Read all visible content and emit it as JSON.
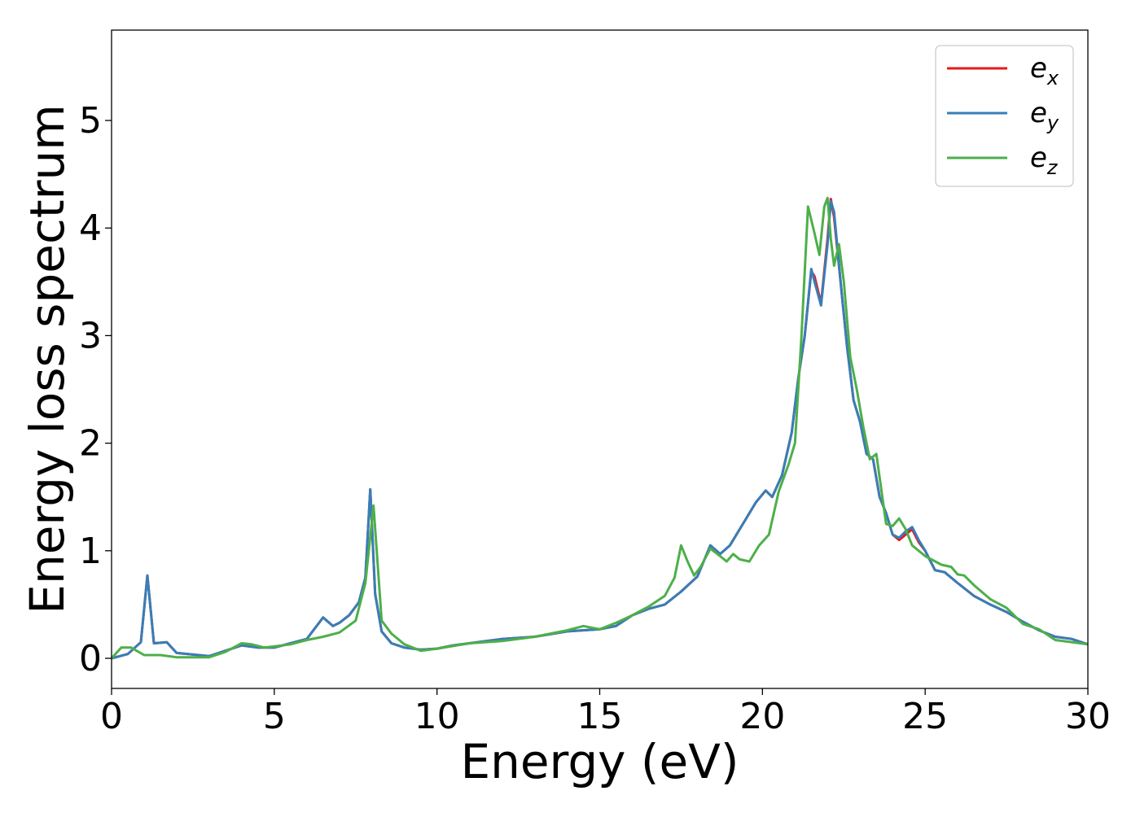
{
  "chart_data": {
    "type": "line",
    "xlabel": "Energy (eV)",
    "ylabel": "Energy loss spectrum",
    "xlim": [
      0,
      30
    ],
    "ylim": [
      -0.28,
      5.84
    ],
    "xticks": [
      "0",
      "5",
      "10",
      "15",
      "20",
      "25",
      "30"
    ],
    "yticks": [
      "0",
      "1",
      "2",
      "3",
      "4",
      "5"
    ],
    "grid": false,
    "legend_position": "top-right",
    "series": [
      {
        "name": "e_x",
        "legend_base": "e",
        "legend_sub": "x",
        "color": "#e41a1c",
        "x": [
          0,
          0.5,
          0.9,
          1.1,
          1.3,
          1.7,
          2.0,
          3.0,
          3.5,
          4.0,
          4.5,
          5.0,
          5.5,
          6.0,
          6.5,
          6.8,
          7.0,
          7.3,
          7.6,
          7.8,
          7.95,
          8.1,
          8.3,
          8.6,
          9.0,
          9.5,
          10.0,
          10.5,
          11.0,
          12.0,
          13.0,
          14.0,
          15.0,
          15.5,
          16.0,
          16.5,
          17.0,
          17.5,
          18.0,
          18.4,
          18.7,
          19.0,
          19.5,
          19.8,
          20.1,
          20.3,
          20.6,
          20.9,
          21.1,
          21.3,
          21.5,
          21.6,
          21.8,
          22.0,
          22.1,
          22.2,
          22.4,
          22.6,
          22.8,
          23.0,
          23.2,
          23.4,
          23.6,
          23.8,
          24.0,
          24.2,
          24.4,
          24.6,
          24.8,
          25.0,
          25.3,
          25.6,
          26.0,
          26.5,
          27.0,
          27.5,
          28.0,
          28.5,
          29.0,
          29.5,
          30.0
        ],
        "y": [
          0.0,
          0.04,
          0.15,
          0.77,
          0.14,
          0.15,
          0.05,
          0.02,
          0.07,
          0.12,
          0.1,
          0.1,
          0.14,
          0.18,
          0.38,
          0.3,
          0.33,
          0.4,
          0.52,
          0.75,
          1.57,
          0.6,
          0.25,
          0.14,
          0.1,
          0.08,
          0.09,
          0.12,
          0.14,
          0.18,
          0.2,
          0.25,
          0.27,
          0.3,
          0.4,
          0.46,
          0.5,
          0.62,
          0.76,
          1.05,
          0.97,
          1.05,
          1.3,
          1.45,
          1.56,
          1.5,
          1.7,
          2.1,
          2.6,
          3.0,
          3.6,
          3.55,
          3.3,
          3.9,
          4.27,
          4.1,
          3.5,
          2.9,
          2.4,
          2.2,
          1.9,
          1.85,
          1.5,
          1.35,
          1.15,
          1.1,
          1.15,
          1.2,
          1.08,
          1.0,
          0.82,
          0.8,
          0.7,
          0.58,
          0.5,
          0.43,
          0.34,
          0.26,
          0.2,
          0.18,
          0.13
        ]
      },
      {
        "name": "e_y",
        "legend_base": "e",
        "legend_sub": "y",
        "color": "#377eb8",
        "x": [
          0,
          0.5,
          0.9,
          1.1,
          1.3,
          1.7,
          2.0,
          3.0,
          3.5,
          4.0,
          4.5,
          5.0,
          5.5,
          6.0,
          6.5,
          6.8,
          7.0,
          7.3,
          7.6,
          7.8,
          7.95,
          8.1,
          8.3,
          8.6,
          9.0,
          9.5,
          10.0,
          10.5,
          11.0,
          12.0,
          13.0,
          14.0,
          15.0,
          15.5,
          16.0,
          16.5,
          17.0,
          17.5,
          18.0,
          18.4,
          18.7,
          19.0,
          19.5,
          19.8,
          20.1,
          20.3,
          20.6,
          20.9,
          21.1,
          21.3,
          21.5,
          21.6,
          21.8,
          22.0,
          22.1,
          22.2,
          22.4,
          22.6,
          22.8,
          23.0,
          23.2,
          23.4,
          23.6,
          23.8,
          24.0,
          24.2,
          24.4,
          24.6,
          24.8,
          25.0,
          25.3,
          25.6,
          26.0,
          26.5,
          27.0,
          27.5,
          28.0,
          28.5,
          29.0,
          29.5,
          30.0
        ],
        "y": [
          0.0,
          0.04,
          0.15,
          0.77,
          0.14,
          0.15,
          0.05,
          0.02,
          0.07,
          0.12,
          0.1,
          0.1,
          0.14,
          0.18,
          0.38,
          0.3,
          0.33,
          0.4,
          0.52,
          0.75,
          1.57,
          0.6,
          0.25,
          0.14,
          0.1,
          0.08,
          0.09,
          0.12,
          0.14,
          0.18,
          0.2,
          0.25,
          0.27,
          0.3,
          0.4,
          0.46,
          0.5,
          0.62,
          0.76,
          1.05,
          0.97,
          1.05,
          1.3,
          1.45,
          1.56,
          1.5,
          1.7,
          2.1,
          2.6,
          3.0,
          3.62,
          3.5,
          3.28,
          3.85,
          4.25,
          4.15,
          3.5,
          2.9,
          2.4,
          2.2,
          1.9,
          1.85,
          1.5,
          1.35,
          1.15,
          1.12,
          1.18,
          1.22,
          1.1,
          1.0,
          0.82,
          0.8,
          0.7,
          0.58,
          0.5,
          0.43,
          0.34,
          0.26,
          0.2,
          0.18,
          0.13
        ]
      },
      {
        "name": "e_z",
        "legend_base": "e",
        "legend_sub": "z",
        "color": "#4daf4a",
        "x": [
          0,
          0.3,
          0.6,
          1.0,
          1.5,
          2.0,
          3.0,
          3.5,
          4.0,
          4.3,
          4.7,
          5.0,
          5.5,
          6.0,
          6.5,
          7.0,
          7.5,
          7.8,
          8.05,
          8.3,
          8.6,
          9.0,
          9.5,
          10.0,
          11.0,
          12.0,
          13.0,
          14.0,
          14.5,
          15.0,
          15.5,
          16.0,
          16.5,
          17.0,
          17.3,
          17.5,
          17.7,
          17.9,
          18.1,
          18.4,
          18.7,
          18.9,
          19.1,
          19.3,
          19.6,
          19.9,
          20.2,
          20.5,
          20.8,
          21.0,
          21.2,
          21.4,
          21.6,
          21.75,
          21.9,
          22.0,
          22.1,
          22.2,
          22.35,
          22.5,
          22.7,
          22.9,
          23.1,
          23.3,
          23.5,
          23.8,
          24.0,
          24.2,
          24.4,
          24.6,
          25.0,
          25.5,
          25.8,
          26.0,
          26.2,
          26.5,
          27.0,
          27.5,
          28.0,
          28.5,
          29.0,
          30.0
        ],
        "y": [
          0.0,
          0.1,
          0.1,
          0.03,
          0.03,
          0.01,
          0.01,
          0.06,
          0.14,
          0.13,
          0.1,
          0.11,
          0.13,
          0.17,
          0.2,
          0.24,
          0.35,
          0.7,
          1.42,
          0.35,
          0.23,
          0.13,
          0.07,
          0.09,
          0.14,
          0.16,
          0.2,
          0.26,
          0.3,
          0.27,
          0.33,
          0.4,
          0.48,
          0.58,
          0.75,
          1.05,
          0.9,
          0.77,
          0.85,
          1.02,
          0.95,
          0.9,
          0.97,
          0.92,
          0.9,
          1.05,
          1.15,
          1.55,
          1.8,
          2.0,
          3.0,
          4.2,
          3.95,
          3.75,
          4.2,
          4.28,
          3.9,
          3.65,
          3.85,
          3.5,
          2.8,
          2.5,
          2.15,
          1.85,
          1.9,
          1.25,
          1.23,
          1.3,
          1.2,
          1.05,
          0.95,
          0.87,
          0.85,
          0.78,
          0.77,
          0.68,
          0.55,
          0.47,
          0.32,
          0.27,
          0.17,
          0.13
        ]
      }
    ]
  }
}
